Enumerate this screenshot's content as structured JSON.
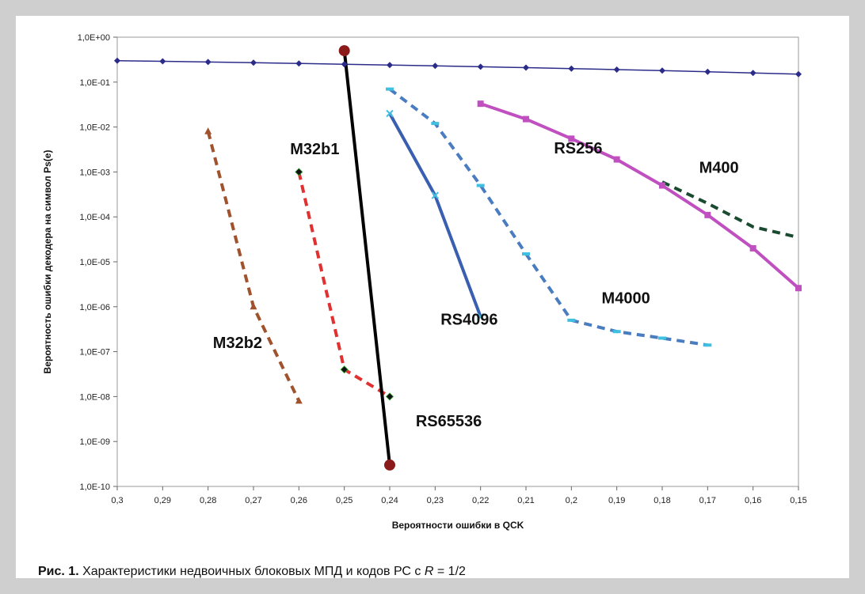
{
  "colors": {
    "background": "#cfcfcf",
    "plot_frame": "#9a9a9a",
    "qsk": "#2b2b8a",
    "rs65536": "#000000",
    "rs65536_marker": "#8b1a1a",
    "m32b1": "#e03030",
    "m32b2": "#a0522d",
    "rs4096": "#3a5fb0",
    "m4000": "#4a7cc0",
    "m4000_accent": "#40c0e0",
    "rs256": "#c050c0",
    "m400": "#1a4a30"
  },
  "chart_data": {
    "type": "line",
    "title": "",
    "xlabel": "Вероятности ошибки в QCK",
    "ylabel": "Вероятность ошибки декодера на символ Ps(e)",
    "x_reversed": true,
    "xlim": [
      0.15,
      0.3
    ],
    "ylim": [
      1e-10,
      1
    ],
    "y_scale": "log",
    "grid": false,
    "x_tick_values": [
      0.3,
      0.29,
      0.28,
      0.27,
      0.26,
      0.25,
      0.24,
      0.23,
      0.22,
      0.21,
      0.2,
      0.19,
      0.18,
      0.17,
      0.16,
      0.15
    ],
    "x_tick_labels": [
      "0,3",
      "0,29",
      "0,28",
      "0,27",
      "0,26",
      "0,25",
      "0,24",
      "0,23",
      "0,22",
      "0,21",
      "0,2",
      "0,19",
      "0,18",
      "0,17",
      "0,16",
      "0,15"
    ],
    "y_tick_values": [
      1,
      0.1,
      0.01,
      0.001,
      0.0001,
      1e-05,
      1e-06,
      1e-07,
      1e-08,
      1e-09,
      1e-10
    ],
    "y_tick_labels": [
      "1,0E+00",
      "1,0E-01",
      "1,0E-02",
      "1,0E-03",
      "1,0E-04",
      "1,0E-05",
      "1,0E-06",
      "1,0E-07",
      "1,0E-08",
      "1,0E-09",
      "1,0E-10"
    ],
    "series": [
      {
        "key": "qsk",
        "color": "qsk",
        "dash": "solid",
        "width": 1.5,
        "marker": "diamond",
        "x": [
          0.3,
          0.29,
          0.28,
          0.27,
          0.26,
          0.25,
          0.24,
          0.23,
          0.22,
          0.21,
          0.2,
          0.19,
          0.18,
          0.17,
          0.16,
          0.15
        ],
        "y": [
          0.3,
          0.29,
          0.28,
          0.27,
          0.26,
          0.25,
          0.24,
          0.23,
          0.22,
          0.21,
          0.2,
          0.19,
          0.18,
          0.17,
          0.16,
          0.15
        ]
      },
      {
        "key": "m32b2",
        "label": "M32b2",
        "color": "m32b2",
        "dash": "dashed",
        "width": 4,
        "marker": "triangle",
        "x": [
          0.28,
          0.27,
          0.26
        ],
        "y": [
          0.008,
          1e-06,
          8e-09
        ]
      },
      {
        "key": "m32b1",
        "label": "M32b1",
        "color": "m32b1",
        "dash": "dashed",
        "width": 4,
        "marker": "diamond-dark",
        "x": [
          0.26,
          0.25,
          0.24
        ],
        "y": [
          0.001,
          4e-08,
          1e-08
        ]
      },
      {
        "key": "rs65536",
        "label": "RS65536",
        "color": "rs65536",
        "dash": "solid",
        "width": 4,
        "marker": "big-circle",
        "x": [
          0.25,
          0.24
        ],
        "y": [
          0.5,
          3e-10
        ]
      },
      {
        "key": "rs4096",
        "label": "RS4096",
        "color": "rs4096",
        "dash": "solid",
        "width": 4,
        "marker": "x",
        "x": [
          0.24,
          0.23,
          0.22
        ],
        "y": [
          0.02,
          0.0003,
          6e-07
        ]
      },
      {
        "key": "m4000",
        "label": "M4000",
        "color": "m4000",
        "dash": "dashed",
        "width": 4,
        "marker": "dash-accent",
        "x": [
          0.24,
          0.23,
          0.22,
          0.21,
          0.2,
          0.19,
          0.18,
          0.17
        ],
        "y": [
          0.07,
          0.012,
          0.0005,
          1.5e-05,
          5e-07,
          2.8e-07,
          2e-07,
          1.4e-07
        ]
      },
      {
        "key": "rs256",
        "label": "RS256",
        "color": "rs256",
        "dash": "solid",
        "width": 4,
        "marker": "square",
        "x": [
          0.22,
          0.21,
          0.2,
          0.19,
          0.18,
          0.17,
          0.16,
          0.15
        ],
        "y": [
          0.033,
          0.015,
          0.0055,
          0.0019,
          0.0005,
          0.00011,
          2e-05,
          2.6e-06
        ]
      },
      {
        "key": "m400",
        "label": "M400",
        "color": "m400",
        "dash": "dashed",
        "width": 4,
        "marker": "none",
        "x": [
          0.18,
          0.17,
          0.16,
          0.15
        ],
        "y": [
          0.0006,
          0.0002,
          6e-05,
          3.5e-05
        ]
      }
    ],
    "annotations": [
      {
        "text": "M32b1",
        "x": 0.2565,
        "y": 0.0025
      },
      {
        "text": "M32b2",
        "x": 0.2735,
        "y": 1.2e-07
      },
      {
        "text": "RS65536",
        "x": 0.227,
        "y": 2.2e-09
      },
      {
        "text": "RS4096",
        "x": 0.2225,
        "y": 4e-07
      },
      {
        "text": "M4000",
        "x": 0.188,
        "y": 1.2e-06
      },
      {
        "text": "RS256",
        "x": 0.1985,
        "y": 0.0026
      },
      {
        "text": "M400",
        "x": 0.1675,
        "y": 0.00095
      }
    ]
  },
  "caption": {
    "label": "Рис. 1.",
    "text_before": " Характеристики  недвоичных блоковых МПД и кодов РС с ",
    "var": "R",
    "text_after": " = 1/2"
  }
}
